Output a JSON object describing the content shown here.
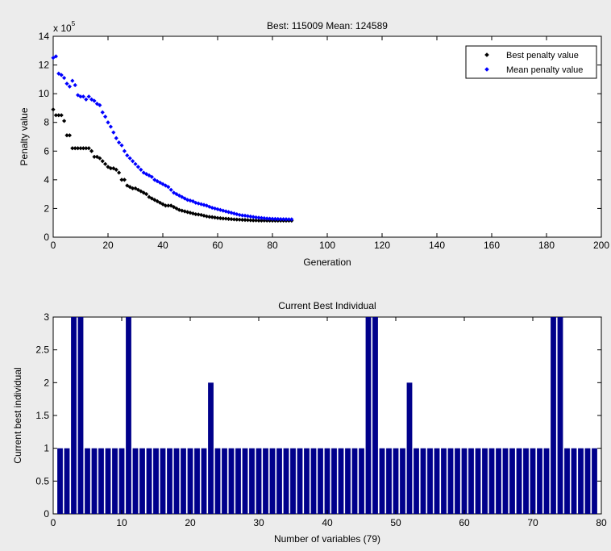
{
  "figure": {
    "background": "#ececec"
  },
  "chart_data": [
    {
      "type": "scatter",
      "title": "Best: 115009 Mean: 124589",
      "xlabel": "Generation",
      "ylabel": "Penalty value",
      "exponent_label": "x 10",
      "exponent_power": "5",
      "xlim": [
        0,
        200
      ],
      "ylim": [
        0,
        1400000
      ],
      "xticks": [
        0,
        20,
        40,
        60,
        80,
        100,
        120,
        140,
        160,
        180,
        200
      ],
      "yticks": [
        0,
        200000,
        400000,
        600000,
        800000,
        1000000,
        1200000,
        1400000
      ],
      "ytick_labels": [
        "0",
        "2",
        "4",
        "6",
        "8",
        "10",
        "12",
        "14"
      ],
      "legend_position": "top-right",
      "series": [
        {
          "name": "Best penalty value",
          "color": "#000000",
          "marker": "diamond",
          "x": [
            0,
            1,
            2,
            3,
            4,
            5,
            6,
            7,
            8,
            9,
            10,
            11,
            12,
            13,
            14,
            15,
            16,
            17,
            18,
            19,
            20,
            21,
            22,
            23,
            24,
            25,
            26,
            27,
            28,
            29,
            30,
            31,
            32,
            33,
            34,
            35,
            36,
            37,
            38,
            39,
            40,
            41,
            42,
            43,
            44,
            45,
            46,
            47,
            48,
            49,
            50,
            51,
            52,
            53,
            54,
            55,
            56,
            57,
            58,
            59,
            60,
            61,
            62,
            63,
            64,
            65,
            66,
            67,
            68,
            69,
            70,
            71,
            72,
            73,
            74,
            75,
            76,
            77,
            78,
            79,
            80,
            81,
            82,
            83,
            84,
            85,
            86,
            87
          ],
          "y": [
            890000,
            850000,
            850000,
            850000,
            810000,
            710000,
            710000,
            620000,
            620000,
            620000,
            620000,
            620000,
            620000,
            620000,
            600000,
            560000,
            560000,
            550000,
            530000,
            510000,
            490000,
            480000,
            480000,
            470000,
            450000,
            400000,
            400000,
            360000,
            350000,
            340000,
            340000,
            330000,
            320000,
            310000,
            300000,
            280000,
            270000,
            260000,
            250000,
            240000,
            230000,
            220000,
            220000,
            220000,
            210000,
            200000,
            190000,
            185000,
            180000,
            175000,
            170000,
            165000,
            160000,
            158000,
            155000,
            150000,
            145000,
            142000,
            140000,
            137000,
            134000,
            132000,
            130000,
            129000,
            127000,
            126000,
            124000,
            123000,
            122000,
            121000,
            120000,
            119000,
            118000,
            117000,
            117000,
            116000,
            116000,
            116000,
            115500,
            115500,
            115200,
            115100,
            115050,
            115030,
            115020,
            115010,
            115009,
            115009
          ]
        },
        {
          "name": "Mean penalty value",
          "color": "#0000ff",
          "marker": "diamond",
          "x": [
            0,
            1,
            2,
            3,
            4,
            5,
            6,
            7,
            8,
            9,
            10,
            11,
            12,
            13,
            14,
            15,
            16,
            17,
            18,
            19,
            20,
            21,
            22,
            23,
            24,
            25,
            26,
            27,
            28,
            29,
            30,
            31,
            32,
            33,
            34,
            35,
            36,
            37,
            38,
            39,
            40,
            41,
            42,
            43,
            44,
            45,
            46,
            47,
            48,
            49,
            50,
            51,
            52,
            53,
            54,
            55,
            56,
            57,
            58,
            59,
            60,
            61,
            62,
            63,
            64,
            65,
            66,
            67,
            68,
            69,
            70,
            71,
            72,
            73,
            74,
            75,
            76,
            77,
            78,
            79,
            80,
            81,
            82,
            83,
            84,
            85,
            86,
            87
          ],
          "y": [
            1250000,
            1260000,
            1140000,
            1130000,
            1110000,
            1070000,
            1050000,
            1090000,
            1060000,
            990000,
            980000,
            980000,
            960000,
            980000,
            960000,
            950000,
            930000,
            920000,
            870000,
            840000,
            800000,
            770000,
            730000,
            690000,
            660000,
            640000,
            600000,
            570000,
            550000,
            530000,
            510000,
            490000,
            470000,
            450000,
            440000,
            430000,
            420000,
            400000,
            390000,
            380000,
            370000,
            360000,
            350000,
            330000,
            310000,
            300000,
            290000,
            280000,
            270000,
            260000,
            255000,
            250000,
            240000,
            235000,
            230000,
            225000,
            220000,
            212000,
            205000,
            200000,
            195000,
            190000,
            185000,
            180000,
            175000,
            170000,
            165000,
            160000,
            155000,
            152000,
            150000,
            147000,
            144000,
            141000,
            138000,
            136000,
            134000,
            132000,
            130000,
            129000,
            128000,
            127000,
            126500,
            126000,
            125500,
            125000,
            124700,
            124589
          ]
        }
      ]
    },
    {
      "type": "bar",
      "title": "Current Best Individual",
      "xlabel": "Number of variables (79)",
      "ylabel": "Current best individual",
      "xlim": [
        0,
        80
      ],
      "ylim": [
        0,
        3
      ],
      "xticks": [
        0,
        10,
        20,
        30,
        40,
        50,
        60,
        70,
        80
      ],
      "yticks": [
        0,
        0.5,
        1,
        1.5,
        2,
        2.5,
        3
      ],
      "ytick_labels": [
        "0",
        "0.5",
        "1",
        "1.5",
        "2",
        "2.5",
        "3"
      ],
      "bar_color": "#00008b",
      "categories": [
        1,
        2,
        3,
        4,
        5,
        6,
        7,
        8,
        9,
        10,
        11,
        12,
        13,
        14,
        15,
        16,
        17,
        18,
        19,
        20,
        21,
        22,
        23,
        24,
        25,
        26,
        27,
        28,
        29,
        30,
        31,
        32,
        33,
        34,
        35,
        36,
        37,
        38,
        39,
        40,
        41,
        42,
        43,
        44,
        45,
        46,
        47,
        48,
        49,
        50,
        51,
        52,
        53,
        54,
        55,
        56,
        57,
        58,
        59,
        60,
        61,
        62,
        63,
        64,
        65,
        66,
        67,
        68,
        69,
        70,
        71,
        72,
        73,
        74,
        75,
        76,
        77,
        78,
        79
      ],
      "values": [
        1,
        1,
        3,
        3,
        1,
        1,
        1,
        1,
        1,
        1,
        3,
        1,
        1,
        1,
        1,
        1,
        1,
        1,
        1,
        1,
        1,
        1,
        2,
        1,
        1,
        1,
        1,
        1,
        1,
        1,
        1,
        1,
        1,
        1,
        1,
        1,
        1,
        1,
        1,
        1,
        1,
        1,
        1,
        1,
        1,
        3,
        3,
        1,
        1,
        1,
        1,
        2,
        1,
        1,
        1,
        1,
        1,
        1,
        1,
        1,
        1,
        1,
        1,
        1,
        1,
        1,
        1,
        1,
        1,
        1,
        1,
        1,
        3,
        3,
        1,
        1,
        1,
        1,
        1
      ]
    }
  ]
}
